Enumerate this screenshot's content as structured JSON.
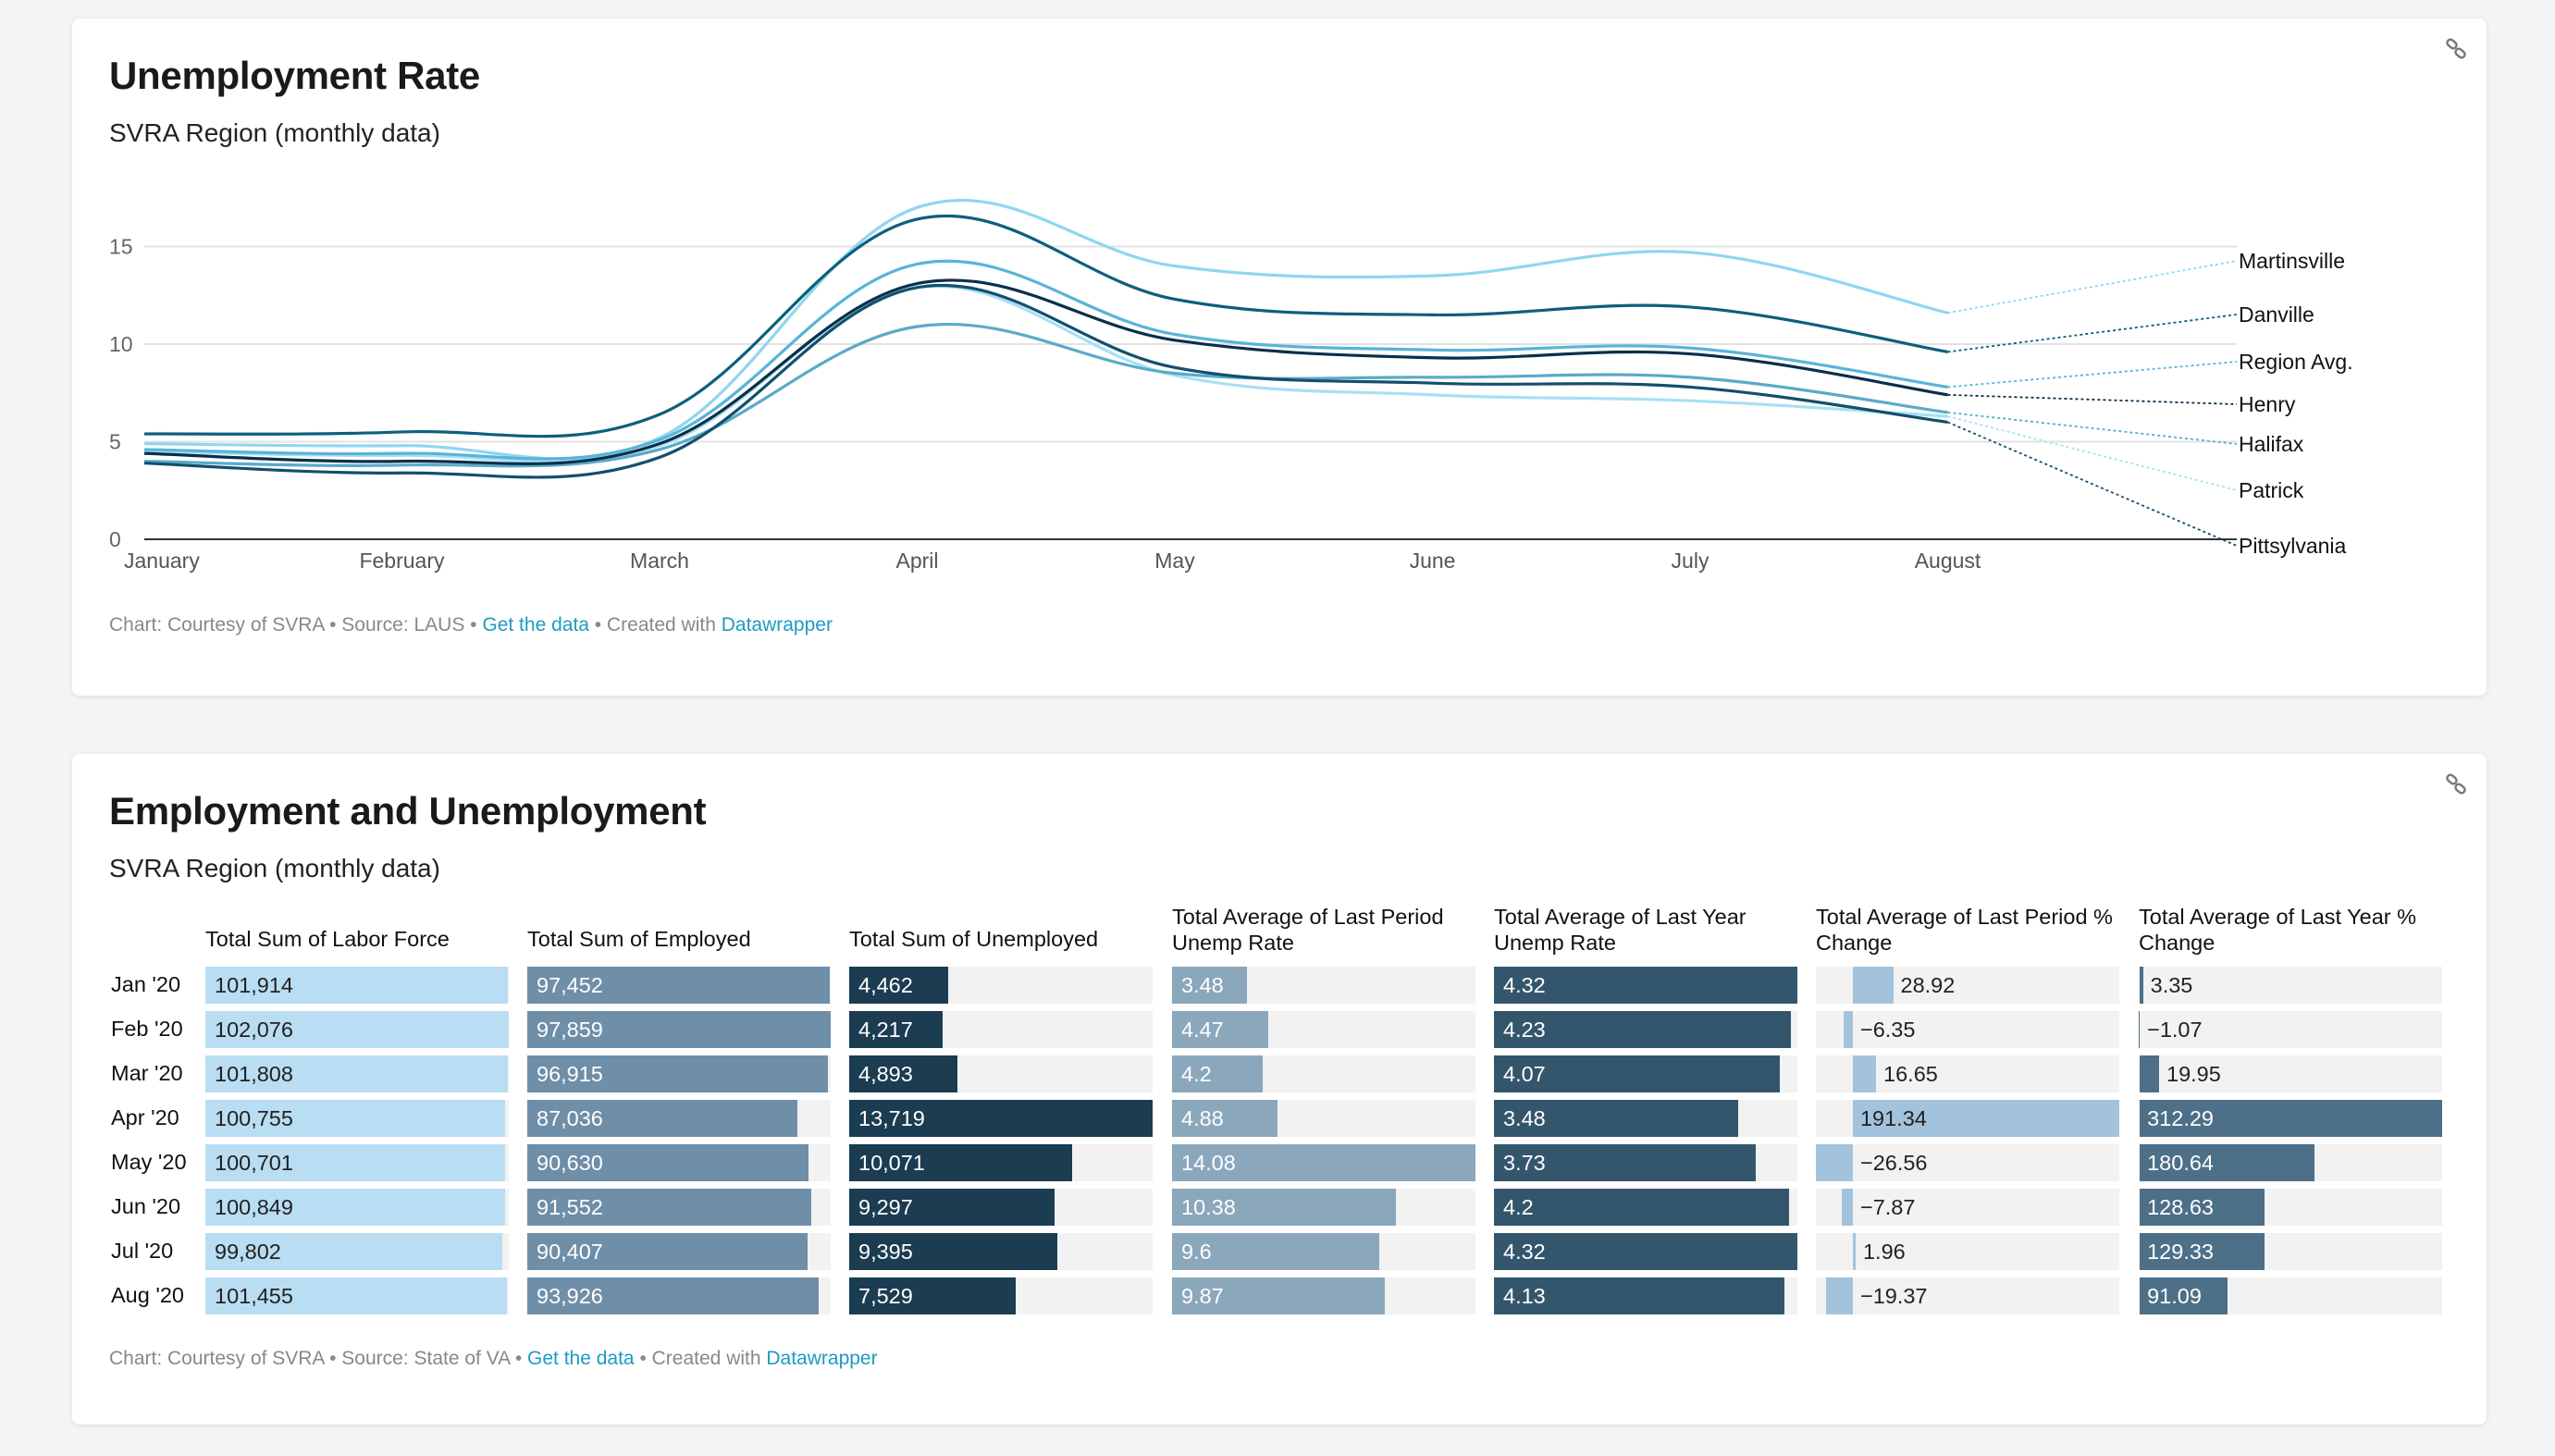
{
  "line_card": {
    "title": "Unemployment Rate",
    "subtitle": "SVRA Region (monthly data)",
    "footer": {
      "prefix": "Chart: Courtesy of SVRA • Source: LAUS • ",
      "get_data": "Get the data",
      "mid": " • Created with ",
      "tool": "Datawrapper"
    }
  },
  "table_card": {
    "title": "Employment and Unemployment",
    "subtitle": "SVRA Region (monthly data)",
    "footer": {
      "prefix": "Chart: Courtesy of SVRA • Source: State of VA • ",
      "get_data": "Get the data",
      "mid": " • Created with ",
      "tool": "Datawrapper"
    }
  },
  "colors": {
    "link": "#1d9bbf",
    "martinsville": "#8fd6f0",
    "danville": "#0d5f7e",
    "region_avg": "#58b4d8",
    "henry": "#0a2f4b",
    "halifax": "#5aaac9",
    "patrick": "#a6e0f5",
    "pittsylvania": "#134f6e"
  },
  "chart_data": [
    {
      "type": "line",
      "title": "Unemployment Rate",
      "subtitle": "SVRA Region (monthly data)",
      "x": [
        "January",
        "February",
        "March",
        "April",
        "May",
        "June",
        "July",
        "August"
      ],
      "ylim": [
        0,
        15
      ],
      "yticks": [
        0,
        5,
        10,
        15
      ],
      "grid": true,
      "legend": "direct labels at right",
      "series": [
        {
          "name": "Martinsville",
          "color": "#8fd6f0",
          "values": [
            4.9,
            4.8,
            5.2,
            17.0,
            14.0,
            13.5,
            14.7,
            11.6
          ]
        },
        {
          "name": "Danville",
          "color": "#0d5f7e",
          "values": [
            5.4,
            5.5,
            6.4,
            16.4,
            12.3,
            11.5,
            11.9,
            9.6
          ]
        },
        {
          "name": "Region Avg.",
          "color": "#58b4d8",
          "values": [
            4.6,
            4.4,
            5.1,
            14.1,
            10.5,
            9.7,
            9.8,
            7.8
          ]
        },
        {
          "name": "Henry",
          "color": "#0a2f4b",
          "values": [
            4.4,
            4.0,
            4.9,
            13.1,
            10.2,
            9.3,
            9.5,
            7.4
          ]
        },
        {
          "name": "Halifax",
          "color": "#5aaac9",
          "values": [
            4.0,
            3.8,
            4.6,
            10.9,
            8.5,
            8.3,
            8.3,
            6.5
          ]
        },
        {
          "name": "Patrick",
          "color": "#a6e0f5",
          "values": [
            4.5,
            4.3,
            4.8,
            12.9,
            8.4,
            7.4,
            7.1,
            6.3
          ]
        },
        {
          "name": "Pittsylvania",
          "color": "#134f6e",
          "values": [
            3.9,
            3.4,
            4.2,
            12.9,
            8.8,
            8.0,
            7.8,
            6.0
          ]
        }
      ]
    },
    {
      "type": "table",
      "title": "Employment and Unemployment",
      "subtitle": "SVRA Region (monthly data)",
      "rows": [
        "Jan '20",
        "Feb '20",
        "Mar '20",
        "Apr '20",
        "May '20",
        "Jun '20",
        "Jul '20",
        "Aug '20"
      ],
      "columns": [
        {
          "name": "Total Sum of Labor Force",
          "color": "#b9ddf2",
          "text_color": "#222222",
          "display": [
            "101,914",
            "102,076",
            "101,808",
            "100,755",
            "100,701",
            "100,849",
            "99,802",
            "101,455"
          ],
          "values": [
            101914,
            102076,
            101808,
            100755,
            100701,
            100849,
            99802,
            101455
          ]
        },
        {
          "name": "Total Sum of Employed",
          "color": "#6f8ea8",
          "text_color": "#ffffff",
          "display": [
            "97,452",
            "97,859",
            "96,915",
            "87,036",
            "90,630",
            "91,552",
            "90,407",
            "93,926"
          ],
          "values": [
            97452,
            97859,
            96915,
            87036,
            90630,
            91552,
            90407,
            93926
          ]
        },
        {
          "name": "Total Sum of Unemployed",
          "color": "#1b3c51",
          "text_color": "#ffffff",
          "display": [
            "4,462",
            "4,217",
            "4,893",
            "13,719",
            "10,071",
            "9,297",
            "9,395",
            "7,529"
          ],
          "values": [
            4462,
            4217,
            4893,
            13719,
            10071,
            9297,
            9395,
            7529
          ]
        },
        {
          "name": "Total Average of Last Period Unemp Rate",
          "color": "#8ba7bc",
          "text_color": "#ffffff",
          "display": [
            "3.48",
            "4.47",
            "4.2",
            "4.88",
            "14.08",
            "10.38",
            "9.6",
            "9.87"
          ],
          "values": [
            3.48,
            4.47,
            4.2,
            4.88,
            14.08,
            10.38,
            9.6,
            9.87
          ]
        },
        {
          "name": "Total Average of Last Year Unemp Rate",
          "color": "#34566d",
          "text_color": "#ffffff",
          "display": [
            "4.32",
            "4.23",
            "4.07",
            "3.48",
            "3.73",
            "4.2",
            "4.32",
            "4.13"
          ],
          "values": [
            4.32,
            4.23,
            4.07,
            3.48,
            3.73,
            4.2,
            4.32,
            4.13
          ]
        },
        {
          "name": "Total Average of Last Period % Change",
          "color": "#a3c3dc",
          "text_color": "#222222",
          "display": [
            "28.92",
            "−6.35",
            "16.65",
            "191.34",
            "−26.56",
            "−7.87",
            "1.96",
            "−19.37"
          ],
          "values": [
            28.92,
            -6.35,
            16.65,
            191.34,
            -26.56,
            -7.87,
            1.96,
            -19.37
          ]
        },
        {
          "name": "Total Average of Last Year % Change",
          "color": "#4d6f88",
          "text_color": "#ffffff",
          "display": [
            "3.35",
            "−1.07",
            "19.95",
            "312.29",
            "180.64",
            "128.63",
            "129.33",
            "91.09"
          ],
          "values": [
            3.35,
            -1.07,
            19.95,
            312.29,
            180.64,
            128.63,
            129.33,
            91.09
          ]
        }
      ]
    }
  ]
}
